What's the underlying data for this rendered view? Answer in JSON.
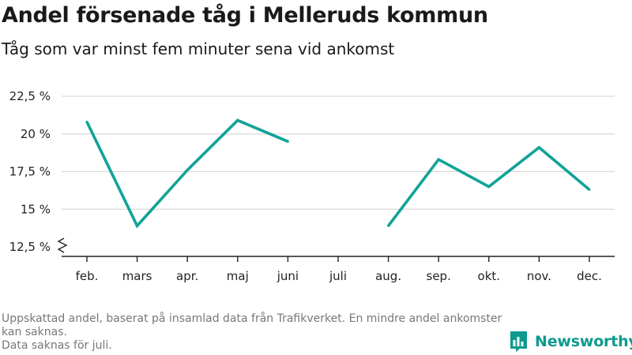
{
  "title": "Andel försenade tåg i Melleruds kommun",
  "subtitle": "Tåg som var minst fem minuter sena vid ankomst",
  "footnote": {
    "line1": "Uppskattad andel, baserat på insamlad data från Trafikverket. En mindre andel ankomster kan saknas.",
    "line2": "Data saknas för juli."
  },
  "brand": {
    "name": "Newsworthy",
    "color": "#0e9a8e"
  },
  "chart_data": {
    "type": "line",
    "title": "Andel försenade tåg i Melleruds kommun",
    "subtitle": "Tåg som var minst fem minuter sena vid ankomst",
    "categories": [
      "feb.",
      "mars",
      "apr.",
      "maj",
      "juni",
      "juli",
      "aug.",
      "sep.",
      "okt.",
      "nov.",
      "dec."
    ],
    "series": [
      {
        "values": [
          20.8,
          13.9,
          17.6,
          20.9,
          19.5,
          null,
          13.9,
          18.3,
          16.5,
          19.1,
          16.3
        ],
        "color": "#12a398"
      }
    ],
    "yticks": [
      12.5,
      15,
      17.5,
      20,
      22.5
    ],
    "ytick_labels": [
      "12,5 %",
      "15 %",
      "17,5 %",
      "20 %",
      "22,5 %"
    ],
    "ylim": [
      12.5,
      22.5
    ],
    "axis_break": true,
    "grid": true,
    "xlabel": "",
    "ylabel": ""
  }
}
